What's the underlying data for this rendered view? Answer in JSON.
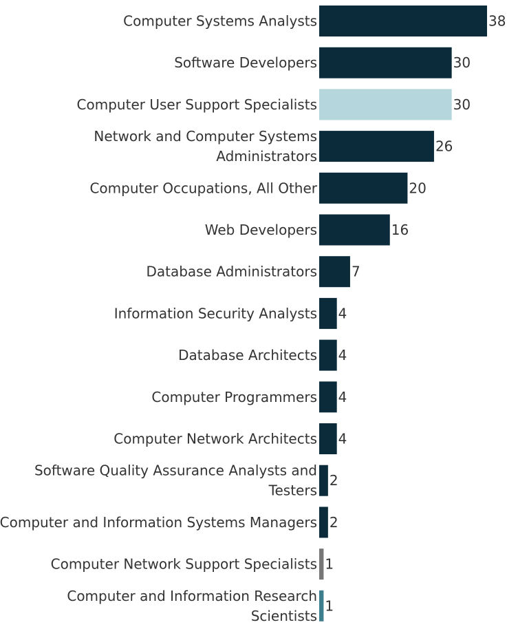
{
  "chart_data": {
    "type": "bar",
    "orientation": "horizontal",
    "title": "",
    "xlabel": "",
    "ylabel": "",
    "xlim": [
      0,
      38
    ],
    "grid": false,
    "legend": "none",
    "categories": [
      [
        "Computer Systems Analysts"
      ],
      [
        "Software Developers"
      ],
      [
        "Computer User Support Specialists"
      ],
      [
        "Network and Computer Systems",
        "Administrators"
      ],
      [
        "Computer Occupations, All Other"
      ],
      [
        "Web Developers"
      ],
      [
        "Database Administrators"
      ],
      [
        "Information Security Analysts"
      ],
      [
        "Database Architects"
      ],
      [
        "Computer Programmers"
      ],
      [
        "Computer Network Architects"
      ],
      [
        "Software Quality Assurance Analysts and",
        "Testers"
      ],
      [
        "Computer and Information Systems Managers"
      ],
      [
        "Computer Network Support Specialists"
      ],
      [
        "Computer and Information Research",
        "Scientists"
      ]
    ],
    "values": [
      38,
      30,
      30,
      26,
      20,
      16,
      7,
      4,
      4,
      4,
      4,
      2,
      2,
      1,
      1
    ],
    "value_labels": [
      "38",
      "30",
      "30",
      "26",
      "20",
      "16",
      "7",
      "4",
      "4",
      "4",
      "4",
      "2",
      "2",
      "1",
      "1"
    ],
    "colors": [
      "#0b2b3a",
      "#0b2b3a",
      "#b5d6dd",
      "#0b2b3a",
      "#0b2b3a",
      "#0b2b3a",
      "#0b2b3a",
      "#0b2b3a",
      "#0b2b3a",
      "#0b2b3a",
      "#0b2b3a",
      "#0b2b3a",
      "#0b2b3a",
      "#777777",
      "#3e7f8e"
    ]
  }
}
